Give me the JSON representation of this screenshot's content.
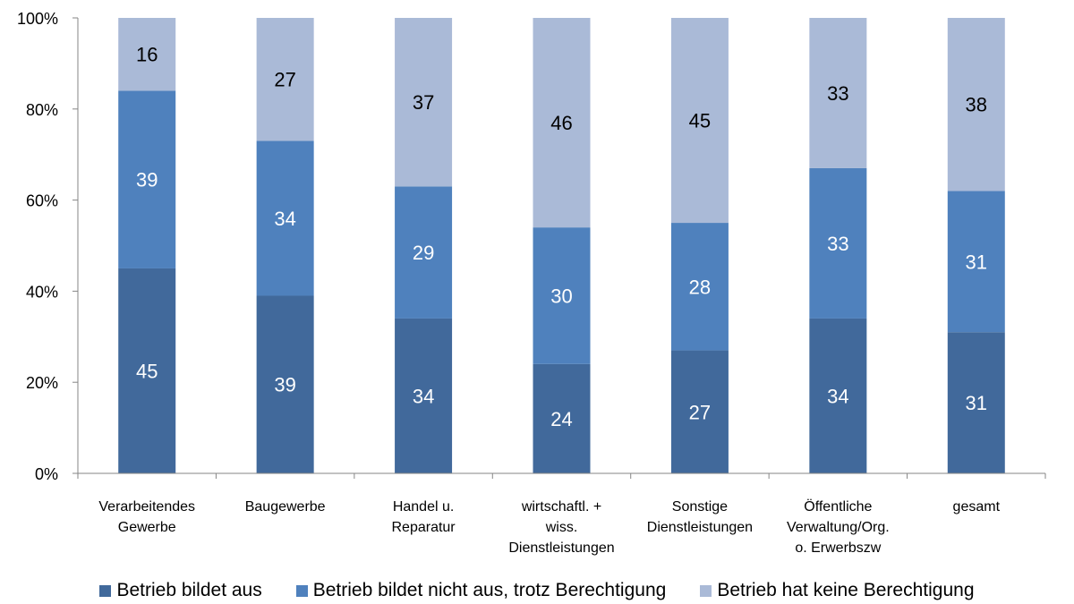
{
  "chart_data": {
    "type": "bar",
    "stacked": true,
    "categories": [
      [
        "Verarbeitendes",
        "Gewerbe"
      ],
      [
        "Baugewerbe"
      ],
      [
        "Handel u.",
        "Reparatur"
      ],
      [
        "wirtschaftl. +",
        "wiss.",
        "Dienstleistungen"
      ],
      [
        "Sonstige",
        "Dienstleistungen"
      ],
      [
        "Öffentliche",
        "Verwaltung/Org.",
        "o. Erwerbszw"
      ],
      [
        "gesamt"
      ]
    ],
    "series": [
      {
        "name": "Betrieb bildet aus",
        "color": "#41699B",
        "label_color": "#FFFFFF",
        "values": [
          45,
          39,
          34,
          24,
          27,
          34,
          31
        ]
      },
      {
        "name": "Betrieb bildet nicht aus, trotz Berechtigung",
        "color": "#4F81BD",
        "label_color": "#FFFFFF",
        "values": [
          39,
          34,
          29,
          30,
          28,
          33,
          31
        ]
      },
      {
        "name": "Betrieb hat keine Berechtigung",
        "color": "#AABAD7",
        "label_color": "#000000",
        "values": [
          16,
          27,
          37,
          46,
          45,
          33,
          38
        ]
      }
    ],
    "yticks": [
      "0%",
      "20%",
      "40%",
      "60%",
      "80%",
      "100%"
    ],
    "ylim": [
      0,
      100
    ],
    "grid": false,
    "legend_position": "bottom",
    "title": "",
    "xlabel": "",
    "ylabel": ""
  }
}
